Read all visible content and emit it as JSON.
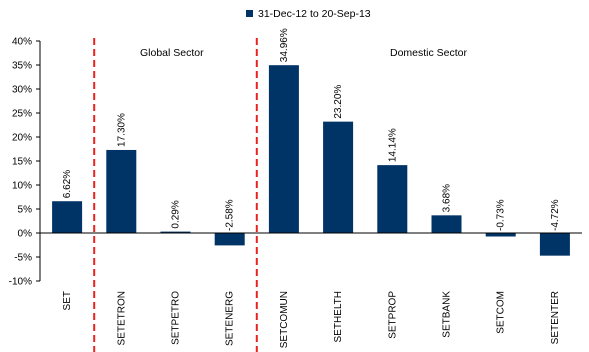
{
  "colors": {
    "bar": "#003366",
    "divider": "#e8231f",
    "axis": "#000000"
  },
  "legend": {
    "label": "31-Dec-12 to 20-Sep-13"
  },
  "annotations": {
    "global": "Global Sector",
    "domestic": "Domestic Sector"
  },
  "chart_data": {
    "type": "bar",
    "categories": [
      "SET",
      "SETETRON",
      "SETPETRO",
      "SETENERG",
      "SETCOMUN",
      "SETHELTH",
      "SETPROP",
      "SETBANK",
      "SETCOM",
      "SETENTER"
    ],
    "series": [
      {
        "name": "31-Dec-12 to 20-Sep-13",
        "values": [
          6.62,
          17.3,
          0.29,
          -2.58,
          34.96,
          23.2,
          14.14,
          3.68,
          -0.73,
          -4.72
        ]
      }
    ],
    "data_labels": [
      "6.62%",
      "17.30%",
      "0.29%",
      "-2.58%",
      "34.96%",
      "23.20%",
      "14.14%",
      "3.68%",
      "-0.73%",
      "-4.72%"
    ],
    "y_ticks": [
      "-10%",
      "-5%",
      "0%",
      "5%",
      "10%",
      "15%",
      "20%",
      "25%",
      "30%",
      "35%",
      "40%"
    ],
    "ylim": [
      -10,
      40
    ],
    "grid": false,
    "legend_position": "top"
  }
}
